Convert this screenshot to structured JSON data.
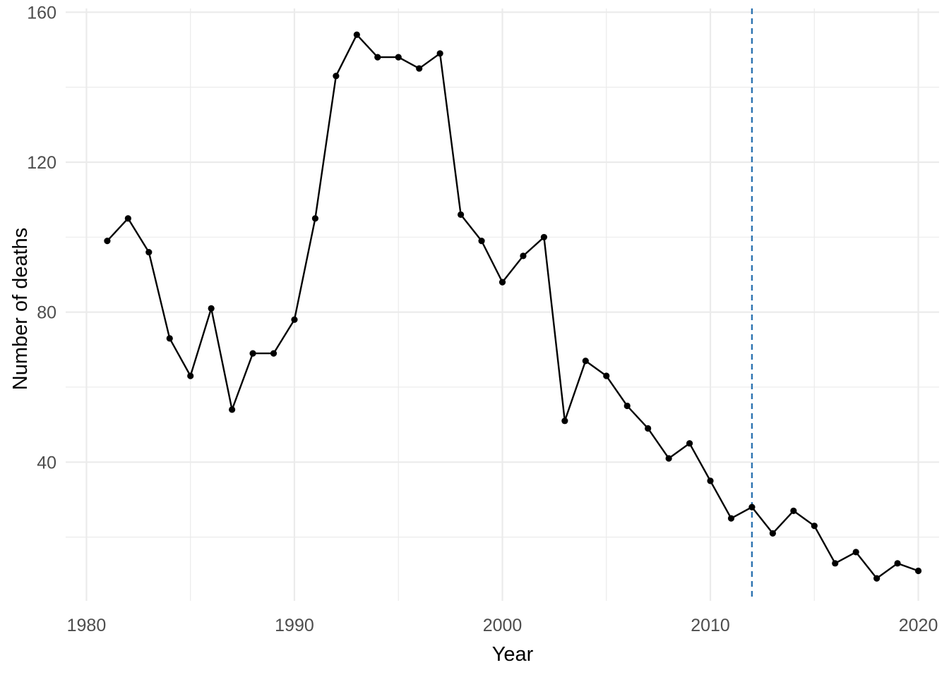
{
  "chart_data": {
    "type": "line",
    "title": "",
    "xlabel": "Year",
    "ylabel": "Number of deaths",
    "xlim": [
      1979,
      2021
    ],
    "ylim": [
      3,
      161
    ],
    "x_ticks": [
      1980,
      1990,
      2000,
      2010,
      2020
    ],
    "y_ticks": [
      40,
      80,
      120,
      160
    ],
    "grid": true,
    "legend": "none",
    "reference_line": {
      "axis": "x",
      "value": 2012,
      "style": "dashed",
      "color": "#2c73b0"
    },
    "series": [
      {
        "color": "#000000",
        "x": [
          1981,
          1982,
          1983,
          1984,
          1985,
          1986,
          1987,
          1988,
          1989,
          1990,
          1991,
          1992,
          1993,
          1994,
          1995,
          1996,
          1997,
          1998,
          1999,
          2000,
          2001,
          2002,
          2003,
          2004,
          2005,
          2006,
          2007,
          2008,
          2009,
          2010,
          2011,
          2012,
          2013,
          2014,
          2015,
          2016,
          2017,
          2018,
          2019,
          2020
        ],
        "y": [
          99,
          105,
          96,
          73,
          63,
          81,
          54,
          69,
          69,
          78,
          105,
          143,
          154,
          148,
          148,
          145,
          149,
          106,
          99,
          88,
          95,
          100,
          51,
          67,
          63,
          55,
          49,
          41,
          45,
          35,
          25,
          28,
          21,
          27,
          23,
          13,
          16,
          9,
          13,
          11
        ]
      }
    ]
  }
}
